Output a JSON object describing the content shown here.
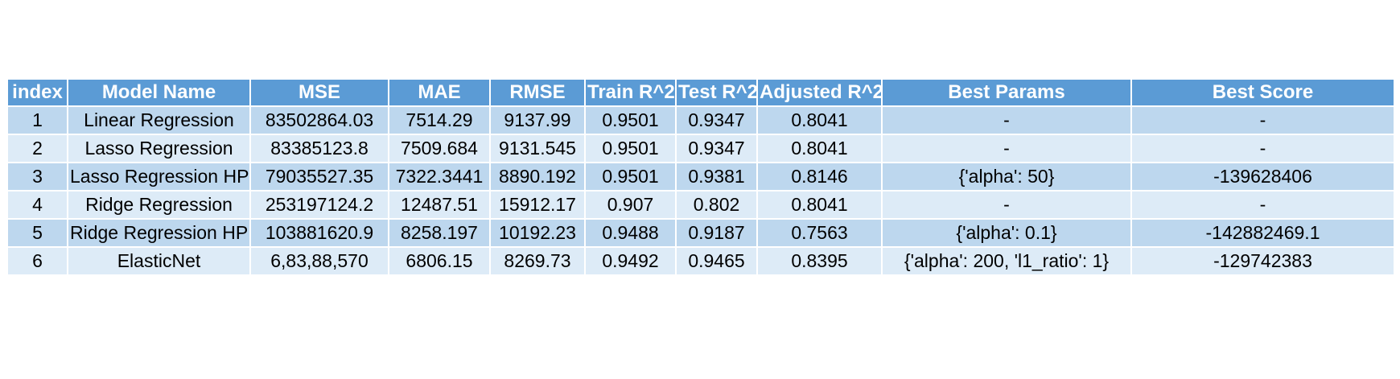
{
  "colors": {
    "header_bg": "#5b9bd5",
    "row_odd_bg": "#bdd7ee",
    "row_even_bg": "#ddebf7",
    "header_text": "#ffffff"
  },
  "table": {
    "headers": [
      "index",
      "Model Name",
      "MSE",
      "MAE",
      "RMSE",
      "Train R^2",
      "Test R^2",
      "Adjusted R^2",
      "Best Params",
      "Best Score"
    ],
    "rows": [
      [
        "1",
        "Linear Regression",
        "83502864.03",
        "7514.29",
        "9137.99",
        "0.9501",
        "0.9347",
        "0.8041",
        "-",
        "-"
      ],
      [
        "2",
        "Lasso Regression",
        "83385123.8",
        "7509.684",
        "9131.545",
        "0.9501",
        "0.9347",
        "0.8041",
        "-",
        "-"
      ],
      [
        "3",
        "Lasso Regression HP",
        "79035527.35",
        "7322.3441",
        "8890.192",
        "0.9501",
        "0.9381",
        "0.8146",
        "{'alpha': 50}",
        "-139628406"
      ],
      [
        "4",
        "Ridge Regression",
        "253197124.2",
        "12487.51",
        "15912.17",
        "0.907",
        "0.802",
        "0.8041",
        "-",
        "-"
      ],
      [
        "5",
        "Ridge Regression HP",
        "103881620.9",
        "8258.197",
        "10192.23",
        "0.9488",
        "0.9187",
        "0.7563",
        "{'alpha': 0.1}",
        "-142882469.1"
      ],
      [
        "6",
        "ElasticNet",
        "6,83,88,570",
        "6806.15",
        "8269.73",
        "0.9492",
        "0.9465",
        "0.8395",
        "{'alpha': 200, 'l1_ratio': 1}",
        "-129742383"
      ]
    ]
  }
}
